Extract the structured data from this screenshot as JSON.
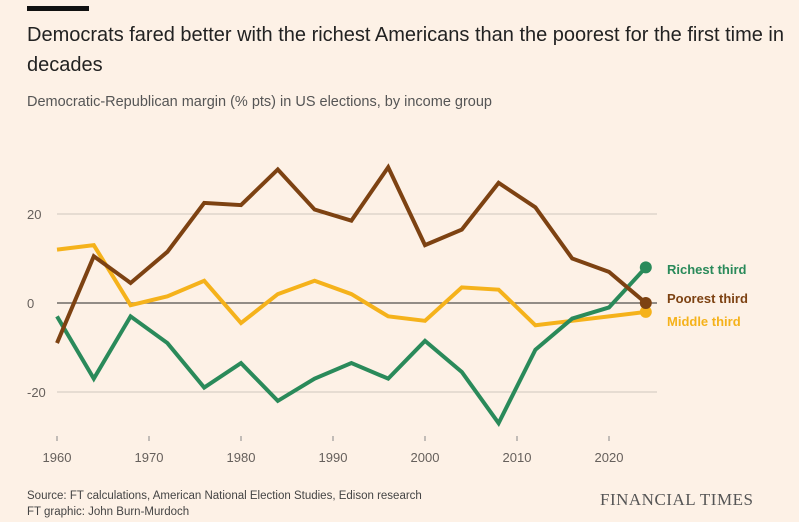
{
  "header": {
    "title": "Democrats fared better with the richest Americans than the poorest for the first time in decades",
    "subtitle": "Democratic-Republican margin (% pts) in US elections, by income group"
  },
  "footer": {
    "source": "Source: FT calculations, American National Election Studies, Edison research",
    "credit": "FT graphic: John Burn-Murdoch",
    "logo": "FINANCIAL TIMES"
  },
  "chart_data": {
    "type": "line",
    "title": "Democrats fared better with the richest Americans than the poorest for the first time in decades",
    "subtitle": "Democratic-Republican margin (% pts) in US elections, by income group",
    "xlabel": "",
    "ylabel": "Democratic-Republican margin (% pts)",
    "x": [
      1960,
      1964,
      1968,
      1972,
      1976,
      1980,
      1984,
      1988,
      1992,
      1996,
      2000,
      2004,
      2008,
      2012,
      2016,
      2020,
      2024
    ],
    "xlim": [
      1960,
      2024
    ],
    "ylim": [
      -30,
      35
    ],
    "xticks": [
      1960,
      1970,
      1980,
      1990,
      2000,
      2010,
      2020
    ],
    "yticks": [
      -20,
      0,
      20
    ],
    "grid": true,
    "legend": "right-end labels",
    "series": [
      {
        "name": "Richest third",
        "color": "#2a8a5a",
        "values": [
          -3,
          -17,
          -3,
          -9,
          -19,
          -13.5,
          -22,
          -17,
          -13.5,
          -17,
          -8.5,
          -15.5,
          -27,
          -10.5,
          -3.5,
          -1,
          8
        ]
      },
      {
        "name": "Poorest third",
        "color": "#7d4212",
        "values": [
          -9,
          10.5,
          4.5,
          11.5,
          22.5,
          22,
          30,
          21,
          18.5,
          30.5,
          13,
          16.5,
          27,
          21.5,
          10,
          7,
          0
        ]
      },
      {
        "name": "Middle third",
        "color": "#f5b21b",
        "values": [
          12,
          13,
          -0.5,
          1.5,
          5,
          -4.5,
          2,
          5,
          2,
          -3,
          -4,
          3.5,
          3,
          -5,
          -4,
          -3,
          -2
        ]
      }
    ]
  }
}
